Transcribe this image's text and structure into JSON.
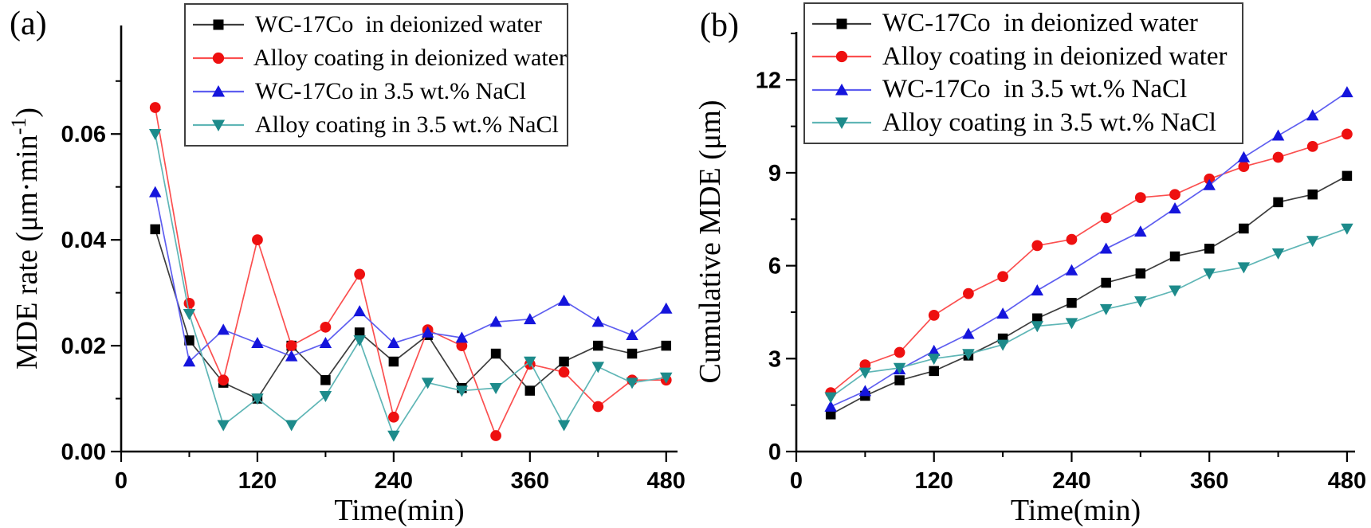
{
  "panel_labels": [
    {
      "text": "(a)"
    },
    {
      "text": "(b)"
    }
  ],
  "chart_data": [
    {
      "type": "line",
      "title": "",
      "xlabel": "Time(min)",
      "ylabel": "MDE rate (μm·min⁻¹)",
      "xlim": [
        0,
        490
      ],
      "ylim": [
        0,
        0.0805
      ],
      "grid": false,
      "legend_position": "top-inside",
      "x": [
        30,
        60,
        90,
        120,
        150,
        180,
        210,
        240,
        270,
        300,
        330,
        360,
        390,
        420,
        450,
        480
      ],
      "xticks": {
        "values": [
          0,
          120,
          240,
          360,
          480
        ],
        "labels": [
          "0",
          "120",
          "240",
          "360",
          "480"
        ],
        "minor": [
          60,
          180,
          300,
          420
        ]
      },
      "yticks": {
        "values": [
          0,
          0.02,
          0.04,
          0.06
        ],
        "labels": [
          "0.00",
          "0.02",
          "0.04",
          "0.06"
        ],
        "minor": [
          0.01,
          0.03,
          0.05,
          0.07
        ]
      },
      "series": [
        {
          "name": "wc17co-deionized-water",
          "label": "WC-17Co  in deionized water",
          "marker": "square",
          "marker_color": "#000000",
          "line_color": "#3d3d3d",
          "values": [
            0.042,
            0.021,
            0.013,
            0.01,
            0.02,
            0.0135,
            0.0225,
            0.017,
            0.022,
            0.012,
            0.0185,
            0.0115,
            0.017,
            0.02,
            0.0185,
            0.02
          ]
        },
        {
          "name": "alloy-coating-deionized-water",
          "label": "Alloy coating in deionized water",
          "marker": "circle",
          "marker_color": "#ee1010",
          "line_color": "#fb4f4f",
          "values": [
            0.065,
            0.028,
            0.0135,
            0.04,
            0.02,
            0.0235,
            0.0335,
            0.0065,
            0.023,
            0.02,
            0.003,
            0.0165,
            0.015,
            0.0085,
            0.0135,
            0.0135
          ]
        },
        {
          "name": "wc17co-nacl",
          "label": "WC-17Co in 3.5 wt.% NaCl",
          "marker": "triangle-up",
          "marker_color": "#1515dc",
          "line_color": "#5e5ef0",
          "values": [
            0.049,
            0.017,
            0.023,
            0.0205,
            0.018,
            0.0205,
            0.0265,
            0.0205,
            0.0225,
            0.0215,
            0.0245,
            0.025,
            0.0285,
            0.0245,
            0.022,
            0.027
          ]
        },
        {
          "name": "alloy-coating-nacl",
          "label": "Alloy coating in 3.5 wt.% NaCl",
          "marker": "triangle-down",
          "marker_color": "#1d8b8b",
          "line_color": "#5fb6b6",
          "values": [
            0.06,
            0.026,
            0.005,
            0.01,
            0.005,
            0.0105,
            0.021,
            0.003,
            0.013,
            0.0115,
            0.012,
            0.017,
            0.005,
            0.016,
            0.013,
            0.014
          ]
        }
      ]
    },
    {
      "type": "line",
      "title": "",
      "xlabel": "Time(min)",
      "ylabel": "Cumulative MDE (μm)",
      "xlim": [
        0,
        487
      ],
      "ylim": [
        0,
        13.55
      ],
      "grid": false,
      "legend_position": "top-inside",
      "x": [
        30,
        60,
        90,
        120,
        150,
        180,
        210,
        240,
        270,
        300,
        330,
        360,
        390,
        420,
        450,
        480
      ],
      "xticks": {
        "values": [
          0,
          120,
          240,
          360,
          480
        ],
        "labels": [
          "0",
          "120",
          "240",
          "360",
          "480"
        ],
        "minor": [
          60,
          180,
          300,
          420
        ]
      },
      "yticks": {
        "values": [
          0,
          3,
          6,
          9,
          12
        ],
        "labels": [
          "0",
          "3",
          "6",
          "9",
          "12"
        ],
        "minor": [
          1.5,
          4.5,
          7.5,
          10.5,
          13.5
        ]
      },
      "series": [
        {
          "name": "wc17co-deionized-water",
          "label": "WC-17Co  in deionized water",
          "marker": "square",
          "marker_color": "#000000",
          "line_color": "#3d3d3d",
          "values": [
            1.2,
            1.8,
            2.3,
            2.6,
            3.1,
            3.65,
            4.3,
            4.8,
            5.45,
            5.75,
            6.3,
            6.55,
            7.2,
            8.05,
            8.3,
            8.9
          ]
        },
        {
          "name": "alloy-coating-deionized-water",
          "label": "Alloy coating in deionized water",
          "marker": "circle",
          "marker_color": "#ee1010",
          "line_color": "#fb4f4f",
          "values": [
            1.9,
            2.8,
            3.2,
            4.4,
            5.1,
            5.65,
            6.65,
            6.85,
            7.55,
            8.2,
            8.3,
            8.8,
            9.2,
            9.5,
            9.85,
            10.25
          ]
        },
        {
          "name": "wc17co-nacl",
          "label": "WC-17Co  in 3.5 wt.% NaCl",
          "marker": "triangle-up",
          "marker_color": "#1515dc",
          "line_color": "#5e5ef0",
          "values": [
            1.45,
            1.95,
            2.65,
            3.25,
            3.8,
            4.45,
            5.2,
            5.85,
            6.55,
            7.1,
            7.85,
            8.6,
            9.5,
            10.2,
            10.85,
            11.6
          ]
        },
        {
          "name": "alloy-coating-nacl",
          "label": "Alloy coating in 3.5 wt.% NaCl",
          "marker": "triangle-down",
          "marker_color": "#1d8b8b",
          "line_color": "#5fb6b6",
          "values": [
            1.75,
            2.55,
            2.7,
            3.0,
            3.15,
            3.45,
            4.05,
            4.15,
            4.6,
            4.85,
            5.2,
            5.75,
            5.95,
            6.4,
            6.8,
            7.2
          ]
        }
      ]
    }
  ]
}
